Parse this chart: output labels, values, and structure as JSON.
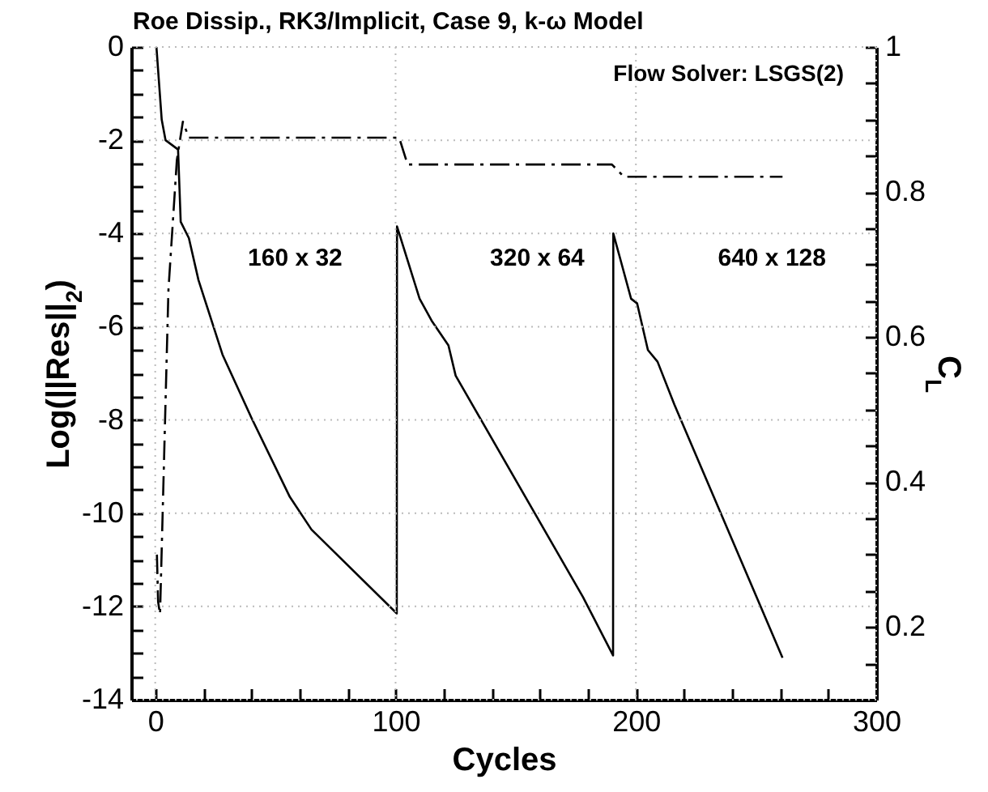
{
  "chart_data": {
    "type": "line",
    "title": "Roe Dissip.,  RK3/Implicit,  Case 9,  k-ω Model",
    "xlabel": "Cycles",
    "ylabel": "Log(||Res||$_{2}$)",
    "y2label": "C$_{L}$",
    "annotations": [
      "Flow Solver:  LSGS(2)",
      "160 x 32",
      "320 x 64",
      "640 x 128"
    ],
    "series": [
      {
        "color": "#000000",
        "line_style": "solid",
        "x": [
          0.5,
          2.7,
          4.3,
          9.5,
          10.6,
          14,
          18,
          23,
          28,
          40,
          56,
          65,
          100.5,
          100.6,
          110,
          115,
          122,
          125,
          178,
          190.5,
          190.6,
          198,
          200.5,
          205,
          209,
          216,
          261
        ],
        "values": [
          0,
          -1.56,
          -2,
          -2.2,
          -3.75,
          -4.1,
          -5,
          -5.8,
          -6.6,
          -7.95,
          -9.65,
          -10.35,
          -12.15,
          -3.85,
          -5.4,
          -5.87,
          -6.4,
          -7.05,
          -11.8,
          -13.05,
          -4.0,
          -5.4,
          -5.5,
          -6.5,
          -6.75,
          -7.67,
          -13.1
        ]
      },
      {
        "color": "#000000",
        "line_style": "dashed",
        "axis": "y2",
        "x": [
          0.7,
          1.2,
          2,
          5.5,
          9,
          11.5,
          14,
          101.5,
          105,
          190,
          195,
          261
        ],
        "values": [
          0.3,
          0.235,
          0.218,
          0.665,
          0.844,
          0.897,
          0.875,
          0.875,
          0.838,
          0.838,
          0.821,
          0.821
        ]
      }
    ],
    "xlim": [
      -10,
      300
    ],
    "xticks": [
      0,
      {
        "value": 20,
        "label": null
      },
      {
        "value": 40,
        "label": null
      },
      {
        "value": 60,
        "label": null
      },
      {
        "value": 80,
        "label": null
      },
      100,
      {
        "value": 120,
        "label": null
      },
      {
        "value": 140,
        "label": null
      },
      {
        "value": 160,
        "label": null
      },
      {
        "value": 180,
        "label": null
      },
      200,
      {
        "value": 220,
        "label": null
      },
      {
        "value": 240,
        "label": null
      },
      {
        "value": 260,
        "label": null
      },
      {
        "value": 280,
        "label": null
      },
      300
    ],
    "ylim": [
      -14,
      0
    ],
    "yticks": [
      -14,
      {
        "value": -13.5,
        "label": null
      },
      {
        "value": -13,
        "label": null
      },
      {
        "value": -12.5,
        "label": null
      },
      -12,
      {
        "value": -11.5,
        "label": null
      },
      {
        "value": -11,
        "label": null
      },
      {
        "value": -10.5,
        "label": null
      },
      -10,
      {
        "value": -9.5,
        "label": null
      },
      {
        "value": -9,
        "label": null
      },
      {
        "value": -8.5,
        "label": null
      },
      -8,
      {
        "value": -7.5,
        "label": null
      },
      {
        "value": -7,
        "label": null
      },
      {
        "value": -6.5,
        "label": null
      },
      -6,
      {
        "value": -5.5,
        "label": null
      },
      {
        "value": -5,
        "label": null
      },
      {
        "value": -4.5,
        "label": null
      },
      -4,
      {
        "value": -3.5,
        "label": null
      },
      {
        "value": -3,
        "label": null
      },
      {
        "value": -2.5,
        "label": null
      },
      -2,
      {
        "value": -1.5,
        "label": null
      },
      {
        "value": -1,
        "label": null
      },
      {
        "value": -0.5,
        "label": null
      },
      0
    ],
    "y2lim": [
      0.1,
      1
    ],
    "y2ticks": [
      {
        "value": 0.15,
        "label": null
      },
      0.2,
      {
        "value": 0.25,
        "label": null
      },
      {
        "value": 0.3,
        "label": null
      },
      {
        "value": 0.35,
        "label": null
      },
      0.4,
      {
        "value": 0.45,
        "label": null
      },
      {
        "value": 0.5,
        "label": null
      },
      {
        "value": 0.55,
        "label": null
      },
      0.6,
      {
        "value": 0.65,
        "label": null
      },
      {
        "value": 0.7,
        "label": null
      },
      {
        "value": 0.75,
        "label": null
      },
      0.8,
      {
        "value": 0.85,
        "label": null
      },
      {
        "value": 0.9,
        "label": null
      },
      {
        "value": 0.95,
        "label": null
      },
      1
    ],
    "grid": true,
    "marker": "none"
  }
}
